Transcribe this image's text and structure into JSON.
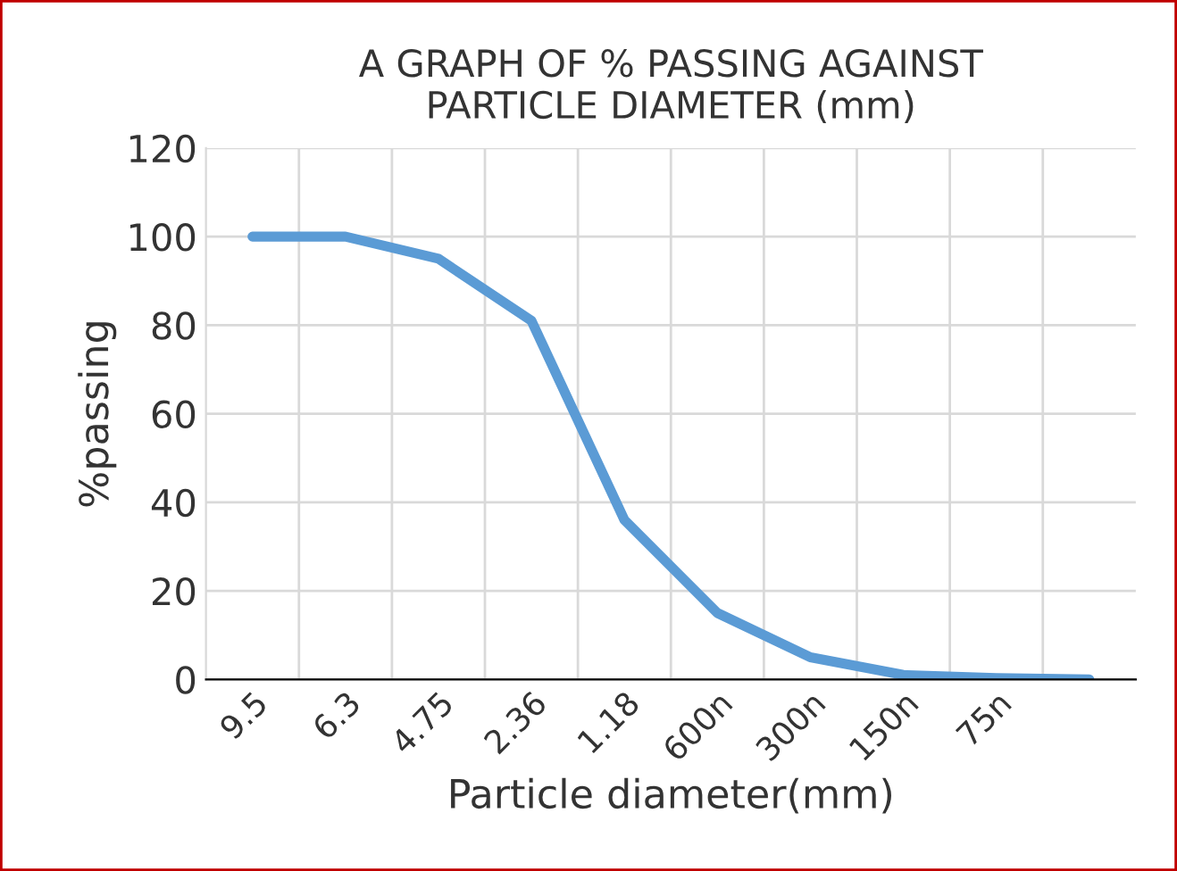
{
  "chart_data": {
    "type": "line",
    "title": "A GRAPH OF % PASSING AGAINST\nPARTICLE DIAMETER (mm)",
    "xlabel": "Particle diameter(mm)",
    "ylabel": "%passing",
    "categories": [
      "9.5",
      "6.3",
      "4.75",
      "2.36",
      "1.18",
      "600n",
      "300n",
      "150n",
      "75n",
      null
    ],
    "series": [
      {
        "color": "#5b9bd5",
        "values": [
          100,
          100,
          95,
          81,
          36,
          15,
          5,
          1,
          0.3,
          0
        ]
      }
    ],
    "ylim": [
      0,
      120
    ],
    "yticks": [
      0,
      20,
      40,
      60,
      80,
      100,
      120
    ],
    "grid": true,
    "marker": "none",
    "line_style": "solid"
  }
}
